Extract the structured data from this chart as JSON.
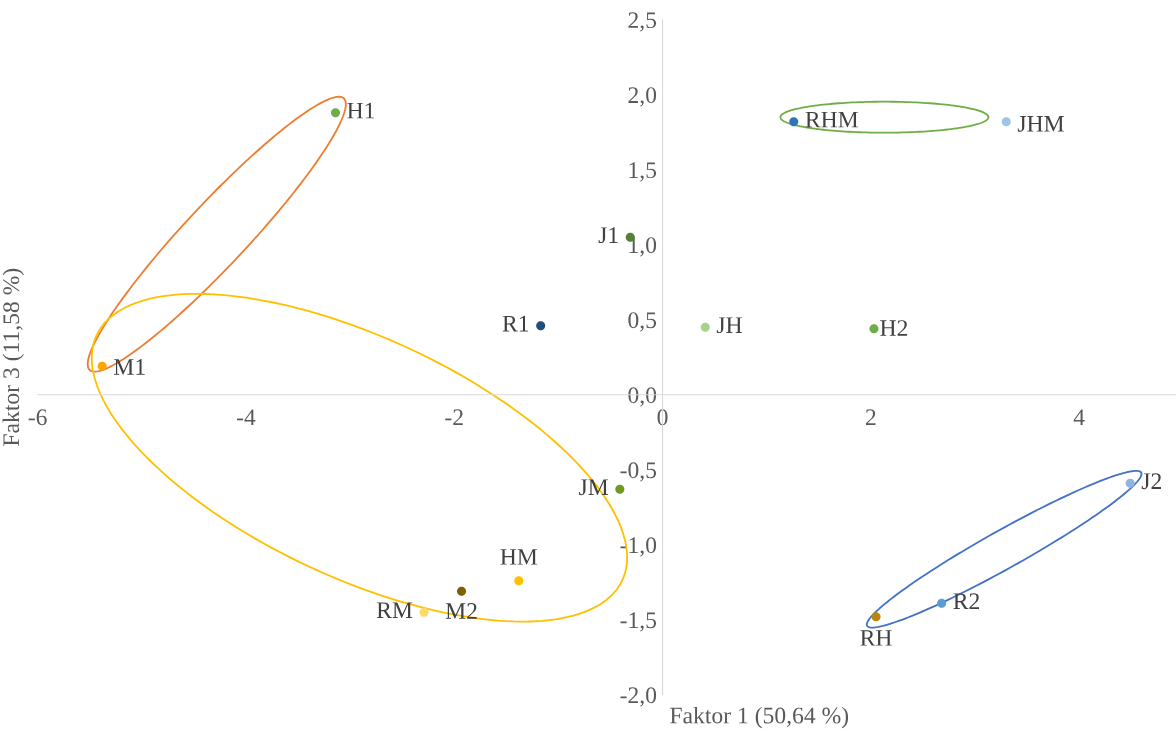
{
  "chart_data": {
    "type": "scatter",
    "xlabel": "Faktor 1 (50,64 %)",
    "ylabel": "Faktor 3 (11,58 %)",
    "xlim": [
      -6,
      4.93
    ],
    "ylim": [
      -2,
      2.5
    ],
    "xticks": [
      -6,
      -4,
      -2,
      0,
      2,
      4
    ],
    "yticks": [
      {
        "value": -2,
        "label": "-2,0"
      },
      {
        "value": -1.5,
        "label": "-1,5"
      },
      {
        "value": -1,
        "label": "-1,0"
      },
      {
        "value": -0.5,
        "label": "-0,5"
      },
      {
        "value": 0,
        "label": "0,0"
      },
      {
        "value": 0.5,
        "label": "0,5"
      },
      {
        "value": 1,
        "label": "1,0"
      },
      {
        "value": 1.5,
        "label": "1,5"
      },
      {
        "value": 2,
        "label": "2,0"
      },
      {
        "value": 2.5,
        "label": "2,5"
      }
    ],
    "grid": false,
    "legend": false,
    "marker": "circle",
    "series": [
      {
        "x": [
          -3.14,
          1.26,
          3.3,
          -0.31,
          -1.17,
          0.41,
          2.03,
          -5.38,
          -0.41,
          4.49,
          -1.38,
          -1.93,
          -2.29,
          2.68,
          2.05
        ],
        "values": [
          1.88,
          1.82,
          1.82,
          1.05,
          0.46,
          0.45,
          0.44,
          0.19,
          -0.63,
          -0.59,
          -1.24,
          -1.31,
          -1.45,
          -1.39,
          -1.48
        ],
        "colors": [
          "#70ad47",
          "#2e75b6",
          "#9dc3e6",
          "#548235",
          "#1f4e79",
          "#a9d18e",
          "#70ad47",
          "#ffa500",
          "#6e9a1e",
          "#8fb4e0",
          "#ffc000",
          "#7f6000",
          "#ffd966",
          "#5b9bd5",
          "#b8860b"
        ]
      }
    ],
    "annotations": [
      {
        "text": "H1",
        "x": -3.14,
        "y": 1.88
      },
      {
        "text": "RHM",
        "x": 1.26,
        "y": 1.82
      },
      {
        "text": "JHM",
        "x": 3.3,
        "y": 1.82
      },
      {
        "text": "J1",
        "x": -0.31,
        "y": 1.05
      },
      {
        "text": "R1",
        "x": -1.17,
        "y": 0.46
      },
      {
        "text": "JH",
        "x": 0.41,
        "y": 0.45
      },
      {
        "text": "H2",
        "x": 2.03,
        "y": 0.44
      },
      {
        "text": "M1",
        "x": -5.38,
        "y": 0.19
      },
      {
        "text": "JM",
        "x": -0.41,
        "y": -0.63
      },
      {
        "text": "J2",
        "x": 4.49,
        "y": -0.59
      },
      {
        "text": "HM",
        "x": -1.38,
        "y": -1.24
      },
      {
        "text": "M2",
        "x": -1.93,
        "y": -1.31
      },
      {
        "text": "RM",
        "x": -2.29,
        "y": -1.45
      },
      {
        "text": "R2",
        "x": 2.68,
        "y": -1.39
      },
      {
        "text": "RH",
        "x": 2.05,
        "y": -1.48
      }
    ]
  }
}
